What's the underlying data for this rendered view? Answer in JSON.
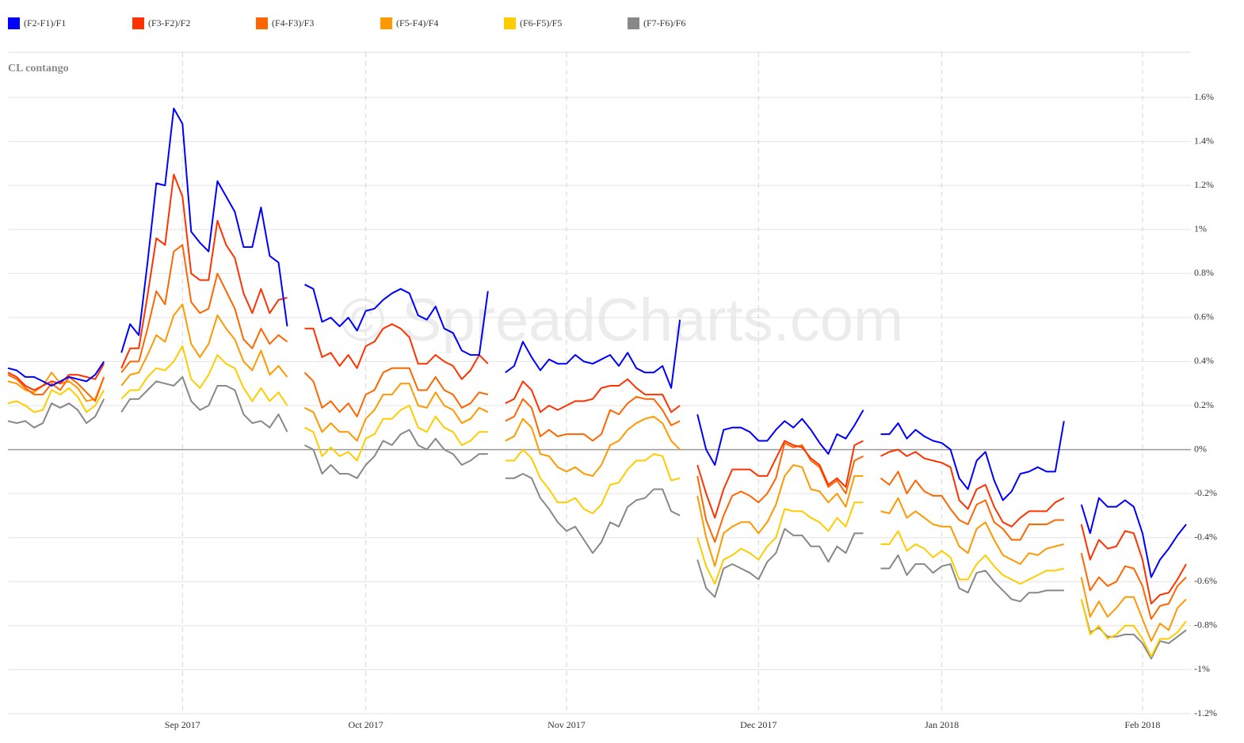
{
  "chart_data": {
    "type": "line",
    "subtitle": "CL contango",
    "watermark": "© SpreadCharts.com",
    "categories": [
      null,
      null,
      null,
      null,
      null,
      null,
      null,
      null,
      null,
      null,
      null,
      null,
      null,
      null,
      null,
      null,
      null,
      null,
      null,
      null,
      "Sep 2017",
      null,
      null,
      null,
      null,
      null,
      null,
      null,
      null,
      null,
      null,
      null,
      null,
      null,
      null,
      null,
      null,
      null,
      null,
      null,
      null,
      "Oct 2017",
      null,
      null,
      null,
      null,
      null,
      null,
      null,
      null,
      null,
      null,
      null,
      null,
      null,
      null,
      null,
      null,
      null,
      null,
      null,
      null,
      null,
      null,
      "Nov 2017",
      null,
      null,
      null,
      null,
      null,
      null,
      null,
      null,
      null,
      null,
      null,
      null,
      null,
      null,
      null,
      null,
      null,
      null,
      null,
      null,
      null,
      "Dec 2017",
      null,
      null,
      null,
      null,
      null,
      null,
      null,
      null,
      null,
      null,
      null,
      null,
      null,
      null,
      null,
      null,
      null,
      null,
      null,
      null,
      "Jan 2018",
      null,
      null,
      null,
      null,
      null,
      null,
      null,
      null,
      null,
      null,
      null,
      null,
      null,
      null,
      null,
      null,
      null,
      null,
      null,
      null,
      null,
      null,
      "Feb 2018",
      null,
      null,
      null,
      null,
      null
    ],
    "ylim": [
      -1.2,
      1.6
    ],
    "yticks": [
      {
        "value": -1.2,
        "label": "-1.2%"
      },
      {
        "value": -1,
        "label": "-1%"
      },
      {
        "value": -0.8,
        "label": "-0.8%"
      },
      {
        "value": -0.6,
        "label": "-0.6%"
      },
      {
        "value": -0.4,
        "label": "-0.4%"
      },
      {
        "value": -0.2,
        "label": "-0.2%"
      },
      {
        "value": 0,
        "label": "0%"
      },
      {
        "value": 0.2,
        "label": "0.2%"
      },
      {
        "value": 0.4,
        "label": "0.4%"
      },
      {
        "value": 0.6,
        "label": "0.6%"
      },
      {
        "value": 0.8,
        "label": "0.8%"
      },
      {
        "value": 1,
        "label": "1%"
      },
      {
        "value": 1.2,
        "label": "1.2%"
      },
      {
        "value": 1.4,
        "label": "1.4%"
      },
      {
        "value": 1.6,
        "label": "1.6%"
      }
    ],
    "grid": true,
    "series": [
      {
        "name": "(F2-F1)/F1",
        "color": "#0000ff",
        "values": [
          0.37,
          0.36,
          0.33,
          0.33,
          0.31,
          0.29,
          0.31,
          0.33,
          0.32,
          0.31,
          0.34,
          0.4,
          null,
          0.44,
          0.57,
          0.52,
          0.85,
          1.21,
          1.2,
          1.55,
          1.48,
          0.99,
          0.94,
          0.9,
          1.22,
          1.15,
          1.08,
          0.92,
          0.92,
          1.1,
          0.88,
          0.85,
          0.56,
          null,
          0.75,
          0.73,
          0.58,
          0.6,
          0.56,
          0.6,
          0.54,
          0.63,
          0.64,
          0.68,
          0.71,
          0.73,
          0.71,
          0.61,
          0.59,
          0.65,
          0.55,
          0.53,
          0.45,
          0.43,
          0.43,
          0.72,
          null,
          0.35,
          0.38,
          0.49,
          0.42,
          0.36,
          0.41,
          0.39,
          0.39,
          0.43,
          0.4,
          0.39,
          0.41,
          0.43,
          0.38,
          0.44,
          0.37,
          0.35,
          0.35,
          0.38,
          0.28,
          0.59,
          null,
          0.16,
          0.0,
          -0.07,
          0.09,
          0.1,
          0.1,
          0.08,
          0.04,
          0.04,
          0.09,
          0.13,
          0.1,
          0.14,
          0.09,
          0.03,
          -0.02,
          0.07,
          0.05,
          0.11,
          0.18,
          null,
          0.07,
          0.07,
          0.12,
          0.05,
          0.09,
          0.06,
          0.04,
          0.03,
          0.0,
          -0.13,
          -0.18,
          -0.05,
          -0.01,
          -0.14,
          -0.23,
          -0.19,
          -0.11,
          -0.1,
          -0.08,
          -0.1,
          -0.1,
          0.13,
          null,
          -0.25,
          -0.38,
          -0.22,
          -0.26,
          -0.26,
          -0.23,
          -0.26,
          -0.38,
          -0.58,
          -0.5,
          -0.45,
          -0.39,
          -0.34
        ]
      },
      {
        "name": "(F3-F2)/F2",
        "color": "#ff3300",
        "values": [
          0.35,
          0.33,
          0.29,
          0.27,
          0.29,
          0.31,
          0.3,
          0.34,
          0.34,
          0.33,
          0.32,
          0.39,
          null,
          0.37,
          0.46,
          0.46,
          0.7,
          0.96,
          0.93,
          1.25,
          1.15,
          0.8,
          0.77,
          0.77,
          1.04,
          0.93,
          0.87,
          0.71,
          0.62,
          0.73,
          0.62,
          0.68,
          0.69,
          null,
          0.55,
          0.55,
          0.42,
          0.44,
          0.38,
          0.43,
          0.37,
          0.47,
          0.49,
          0.55,
          0.57,
          0.55,
          0.51,
          0.39,
          0.39,
          0.43,
          0.4,
          0.38,
          0.32,
          0.36,
          0.43,
          0.39,
          null,
          0.21,
          0.23,
          0.31,
          0.27,
          0.17,
          0.2,
          0.18,
          0.2,
          0.22,
          0.22,
          0.23,
          0.28,
          0.29,
          0.29,
          0.32,
          0.28,
          0.25,
          0.25,
          0.25,
          0.17,
          0.2,
          null,
          -0.07,
          -0.2,
          -0.31,
          -0.18,
          -0.09,
          -0.09,
          -0.09,
          -0.12,
          -0.12,
          -0.04,
          0.04,
          0.02,
          0.01,
          -0.04,
          -0.07,
          -0.16,
          -0.13,
          -0.17,
          0.02,
          0.04,
          null,
          -0.03,
          -0.01,
          0.0,
          -0.03,
          -0.01,
          -0.04,
          -0.05,
          -0.06,
          -0.08,
          -0.23,
          -0.27,
          -0.18,
          -0.16,
          -0.26,
          -0.33,
          -0.35,
          -0.31,
          -0.28,
          -0.28,
          -0.28,
          -0.24,
          -0.22,
          null,
          -0.34,
          -0.5,
          -0.41,
          -0.45,
          -0.44,
          -0.37,
          -0.38,
          -0.5,
          -0.7,
          -0.66,
          -0.65,
          -0.59,
          -0.52
        ]
      },
      {
        "name": "(F4-F3)/F3",
        "color": "#ff6600",
        "values": [
          0.34,
          0.32,
          0.28,
          0.25,
          0.25,
          0.3,
          0.27,
          0.33,
          0.3,
          0.26,
          0.22,
          0.33,
          null,
          0.35,
          0.4,
          0.4,
          0.55,
          0.72,
          0.66,
          0.9,
          0.93,
          0.67,
          0.62,
          0.64,
          0.8,
          0.72,
          0.64,
          0.5,
          0.46,
          0.55,
          0.48,
          0.52,
          0.49,
          null,
          0.35,
          0.31,
          0.19,
          0.22,
          0.17,
          0.21,
          0.15,
          0.25,
          0.27,
          0.35,
          0.37,
          0.37,
          0.37,
          0.27,
          0.27,
          0.33,
          0.27,
          0.25,
          0.19,
          0.21,
          0.26,
          0.25,
          null,
          0.13,
          0.15,
          0.23,
          0.19,
          0.06,
          0.09,
          0.06,
          0.07,
          0.07,
          0.07,
          0.04,
          0.07,
          0.18,
          0.16,
          0.21,
          0.24,
          0.23,
          0.23,
          0.18,
          0.11,
          0.13,
          null,
          -0.12,
          -0.32,
          -0.42,
          -0.3,
          -0.21,
          -0.19,
          -0.21,
          -0.24,
          -0.2,
          -0.13,
          0.03,
          0.01,
          0.02,
          -0.05,
          -0.08,
          -0.17,
          -0.14,
          -0.2,
          -0.05,
          -0.03,
          null,
          -0.13,
          -0.16,
          -0.1,
          -0.2,
          -0.14,
          -0.19,
          -0.21,
          -0.21,
          -0.27,
          -0.32,
          -0.34,
          -0.25,
          -0.23,
          -0.33,
          -0.36,
          -0.41,
          -0.41,
          -0.34,
          -0.34,
          -0.34,
          -0.32,
          -0.32,
          null,
          -0.47,
          -0.64,
          -0.58,
          -0.62,
          -0.6,
          -0.53,
          -0.54,
          -0.62,
          -0.77,
          -0.71,
          -0.7,
          -0.62,
          -0.58
        ]
      },
      {
        "name": "(F5-F4)/F4",
        "color": "#ff9900",
        "values": [
          0.31,
          0.3,
          0.27,
          0.26,
          0.29,
          0.35,
          0.3,
          0.31,
          0.28,
          0.22,
          0.23,
          0.33,
          null,
          0.29,
          0.34,
          0.35,
          0.43,
          0.52,
          0.49,
          0.61,
          0.66,
          0.48,
          0.42,
          0.48,
          0.61,
          0.55,
          0.5,
          0.4,
          0.36,
          0.45,
          0.34,
          0.38,
          0.33,
          null,
          0.19,
          0.17,
          0.08,
          0.12,
          0.08,
          0.08,
          0.04,
          0.14,
          0.18,
          0.25,
          0.25,
          0.3,
          0.3,
          0.2,
          0.19,
          0.26,
          0.2,
          0.18,
          0.12,
          0.14,
          0.19,
          0.17,
          null,
          0.04,
          0.06,
          0.14,
          0.1,
          -0.02,
          -0.03,
          -0.08,
          -0.1,
          -0.08,
          -0.11,
          -0.12,
          -0.07,
          0.02,
          0.04,
          0.09,
          0.12,
          0.14,
          0.15,
          0.12,
          0.04,
          0.0,
          null,
          -0.21,
          -0.4,
          -0.53,
          -0.38,
          -0.35,
          -0.33,
          -0.33,
          -0.38,
          -0.33,
          -0.25,
          -0.12,
          -0.07,
          -0.08,
          -0.18,
          -0.19,
          -0.24,
          -0.2,
          -0.26,
          -0.12,
          -0.12,
          null,
          -0.28,
          -0.29,
          -0.22,
          -0.31,
          -0.28,
          -0.31,
          -0.34,
          -0.35,
          -0.35,
          -0.44,
          -0.47,
          -0.36,
          -0.33,
          -0.41,
          -0.48,
          -0.5,
          -0.52,
          -0.47,
          -0.48,
          -0.45,
          -0.44,
          -0.43,
          null,
          -0.58,
          -0.76,
          -0.69,
          -0.76,
          -0.72,
          -0.67,
          -0.67,
          -0.77,
          -0.87,
          -0.79,
          -0.82,
          -0.72,
          -0.68
        ]
      },
      {
        "name": "(F6-F5)/F5",
        "color": "#ffcc00",
        "values": [
          0.21,
          0.22,
          0.2,
          0.17,
          0.18,
          0.27,
          0.25,
          0.28,
          0.24,
          0.17,
          0.2,
          0.27,
          null,
          0.23,
          0.27,
          0.27,
          0.33,
          0.37,
          0.36,
          0.4,
          0.47,
          0.32,
          0.28,
          0.34,
          0.43,
          0.39,
          0.37,
          0.28,
          0.22,
          0.28,
          0.22,
          0.26,
          0.2,
          null,
          0.1,
          0.08,
          -0.03,
          0.01,
          -0.03,
          -0.01,
          -0.05,
          0.05,
          0.07,
          0.14,
          0.14,
          0.18,
          0.2,
          0.1,
          0.08,
          0.15,
          0.1,
          0.08,
          0.02,
          0.04,
          0.08,
          0.08,
          null,
          -0.05,
          -0.05,
          0.0,
          -0.04,
          -0.13,
          -0.18,
          -0.24,
          -0.24,
          -0.22,
          -0.27,
          -0.29,
          -0.25,
          -0.16,
          -0.15,
          -0.09,
          -0.05,
          -0.05,
          -0.02,
          -0.03,
          -0.14,
          -0.13,
          null,
          -0.4,
          -0.53,
          -0.61,
          -0.5,
          -0.48,
          -0.45,
          -0.47,
          -0.5,
          -0.44,
          -0.4,
          -0.27,
          -0.28,
          -0.28,
          -0.31,
          -0.33,
          -0.37,
          -0.31,
          -0.35,
          -0.24,
          -0.24,
          null,
          -0.43,
          -0.43,
          -0.37,
          -0.46,
          -0.43,
          -0.45,
          -0.49,
          -0.46,
          -0.49,
          -0.59,
          -0.59,
          -0.52,
          -0.48,
          -0.53,
          -0.57,
          -0.59,
          -0.61,
          -0.59,
          -0.57,
          -0.55,
          -0.55,
          -0.54,
          null,
          -0.68,
          -0.84,
          -0.8,
          -0.86,
          -0.84,
          -0.8,
          -0.8,
          -0.86,
          -0.94,
          -0.86,
          -0.86,
          -0.83,
          -0.78
        ]
      },
      {
        "name": "(F7-F6)/F6",
        "color": "#888888",
        "values": [
          0.13,
          0.12,
          0.13,
          0.1,
          0.12,
          0.21,
          0.19,
          0.21,
          0.18,
          0.12,
          0.15,
          0.23,
          null,
          0.17,
          0.23,
          0.23,
          0.27,
          0.31,
          0.3,
          0.29,
          0.33,
          0.22,
          0.18,
          0.2,
          0.29,
          0.29,
          0.27,
          0.16,
          0.12,
          0.13,
          0.1,
          0.16,
          0.08,
          null,
          0.02,
          0.0,
          -0.11,
          -0.07,
          -0.11,
          -0.11,
          -0.13,
          -0.07,
          -0.03,
          0.04,
          0.02,
          0.07,
          0.09,
          0.02,
          0.0,
          0.05,
          0.0,
          -0.02,
          -0.07,
          -0.05,
          -0.02,
          -0.02,
          null,
          -0.13,
          -0.13,
          -0.11,
          -0.13,
          -0.22,
          -0.27,
          -0.33,
          -0.37,
          -0.35,
          -0.41,
          -0.47,
          -0.42,
          -0.33,
          -0.35,
          -0.26,
          -0.23,
          -0.22,
          -0.18,
          -0.18,
          -0.28,
          -0.3,
          null,
          -0.5,
          -0.63,
          -0.67,
          -0.54,
          -0.52,
          -0.54,
          -0.56,
          -0.59,
          -0.51,
          -0.47,
          -0.36,
          -0.39,
          -0.39,
          -0.44,
          -0.44,
          -0.51,
          -0.44,
          -0.47,
          -0.38,
          -0.38,
          null,
          -0.54,
          -0.54,
          -0.48,
          -0.57,
          -0.52,
          -0.52,
          -0.56,
          -0.53,
          -0.52,
          -0.63,
          -0.65,
          -0.56,
          -0.55,
          -0.6,
          -0.64,
          -0.68,
          -0.69,
          -0.65,
          -0.65,
          -0.64,
          -0.64,
          -0.64,
          null,
          -0.68,
          -0.83,
          -0.81,
          -0.85,
          -0.85,
          -0.84,
          -0.84,
          -0.88,
          -0.95,
          -0.87,
          -0.88,
          -0.85,
          -0.82
        ]
      }
    ]
  }
}
